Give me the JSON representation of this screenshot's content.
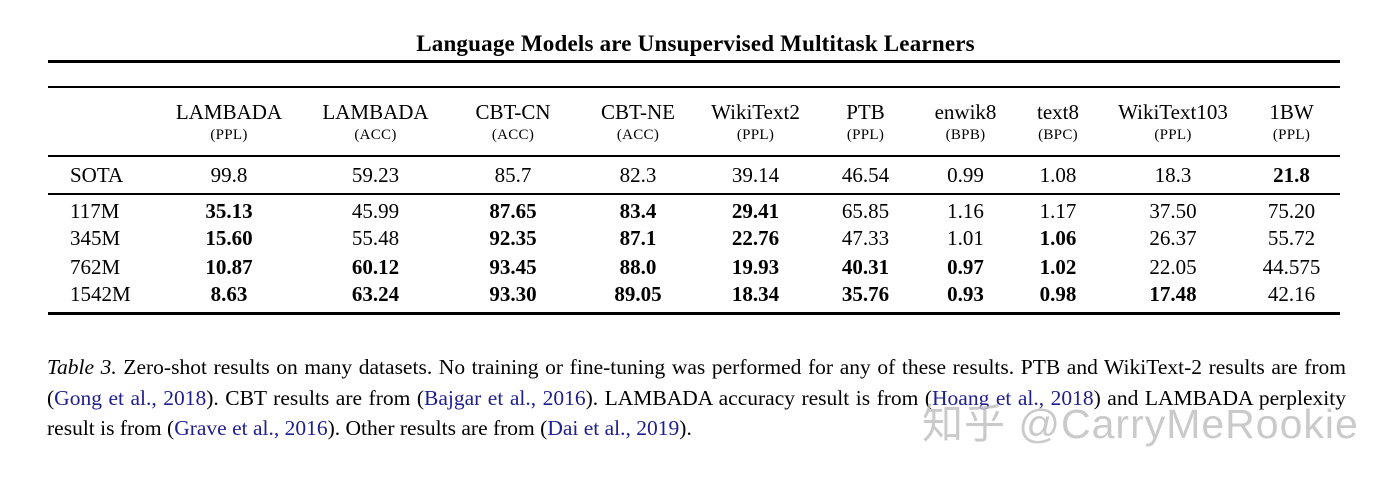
{
  "title": "Language Models are Unsupervised Multitask Learners",
  "table": {
    "columns": [
      {
        "name": "LAMBADA",
        "unit": "(PPL)"
      },
      {
        "name": "LAMBADA",
        "unit": "(ACC)"
      },
      {
        "name": "CBT-CN",
        "unit": "(ACC)"
      },
      {
        "name": "CBT-NE",
        "unit": "(ACC)"
      },
      {
        "name": "WikiText2",
        "unit": "(PPL)"
      },
      {
        "name": "PTB",
        "unit": "(PPL)"
      },
      {
        "name": "enwik8",
        "unit": "(BPB)"
      },
      {
        "name": "text8",
        "unit": "(BPC)"
      },
      {
        "name": "WikiText103",
        "unit": "(PPL)"
      },
      {
        "name": "1BW",
        "unit": "(PPL)"
      }
    ],
    "rows": [
      {
        "section": "sota",
        "label": "SOTA",
        "values": [
          "99.8",
          "59.23",
          "85.7",
          "82.3",
          "39.14",
          "46.54",
          "0.99",
          "1.08",
          "18.3",
          "21.8"
        ],
        "bold": [
          false,
          false,
          false,
          false,
          false,
          false,
          false,
          false,
          false,
          true
        ]
      },
      {
        "section": "models",
        "label": "117M",
        "values": [
          "35.13",
          "45.99",
          "87.65",
          "83.4",
          "29.41",
          "65.85",
          "1.16",
          "1.17",
          "37.50",
          "75.20"
        ],
        "bold": [
          true,
          false,
          true,
          true,
          true,
          false,
          false,
          false,
          false,
          false
        ]
      },
      {
        "section": "models",
        "label": "345M",
        "values": [
          "15.60",
          "55.48",
          "92.35",
          "87.1",
          "22.76",
          "47.33",
          "1.01",
          "1.06",
          "26.37",
          "55.72"
        ],
        "bold": [
          true,
          false,
          true,
          true,
          true,
          false,
          false,
          true,
          false,
          false
        ]
      },
      {
        "section": "models",
        "label": "762M",
        "values": [
          "10.87",
          "60.12",
          "93.45",
          "88.0",
          "19.93",
          "40.31",
          "0.97",
          "1.02",
          "22.05",
          "44.575"
        ],
        "bold": [
          true,
          true,
          true,
          true,
          true,
          true,
          true,
          true,
          false,
          false
        ]
      },
      {
        "section": "models",
        "label": "1542M",
        "values": [
          "8.63",
          "63.24",
          "93.30",
          "89.05",
          "18.34",
          "35.76",
          "0.93",
          "0.98",
          "17.48",
          "42.16"
        ],
        "bold": [
          true,
          true,
          true,
          true,
          true,
          true,
          true,
          true,
          true,
          false
        ]
      }
    ]
  },
  "caption": {
    "segments": [
      {
        "text": "Table 3.",
        "style": "italic"
      },
      {
        "text": " Zero-shot results on many datasets.  No training or fine-tuning was performed for any of these results.  PTB and WikiText-2 results are from (",
        "style": "normal"
      },
      {
        "text": "Gong et al., 2018",
        "style": "link"
      },
      {
        "text": ").  CBT results are from (",
        "style": "normal"
      },
      {
        "text": "Bajgar et al., 2016",
        "style": "link"
      },
      {
        "text": ").  LAMBADA accuracy result is from (",
        "style": "normal"
      },
      {
        "text": "Hoang et al., 2018",
        "style": "link"
      },
      {
        "text": ") and LAMBADA perplexity result is from (",
        "style": "normal"
      },
      {
        "text": "Grave et al., 2016",
        "style": "link"
      },
      {
        "text": ").  Other results are from (",
        "style": "normal"
      },
      {
        "text": "Dai et al., 2019",
        "style": "link"
      },
      {
        "text": ").",
        "style": "normal"
      }
    ]
  },
  "watermark": {
    "text": "知乎 @CarryMeRookie"
  },
  "colors": {
    "link": "#20208c",
    "watermark": "#bfbfbf",
    "rule": "#000000"
  }
}
